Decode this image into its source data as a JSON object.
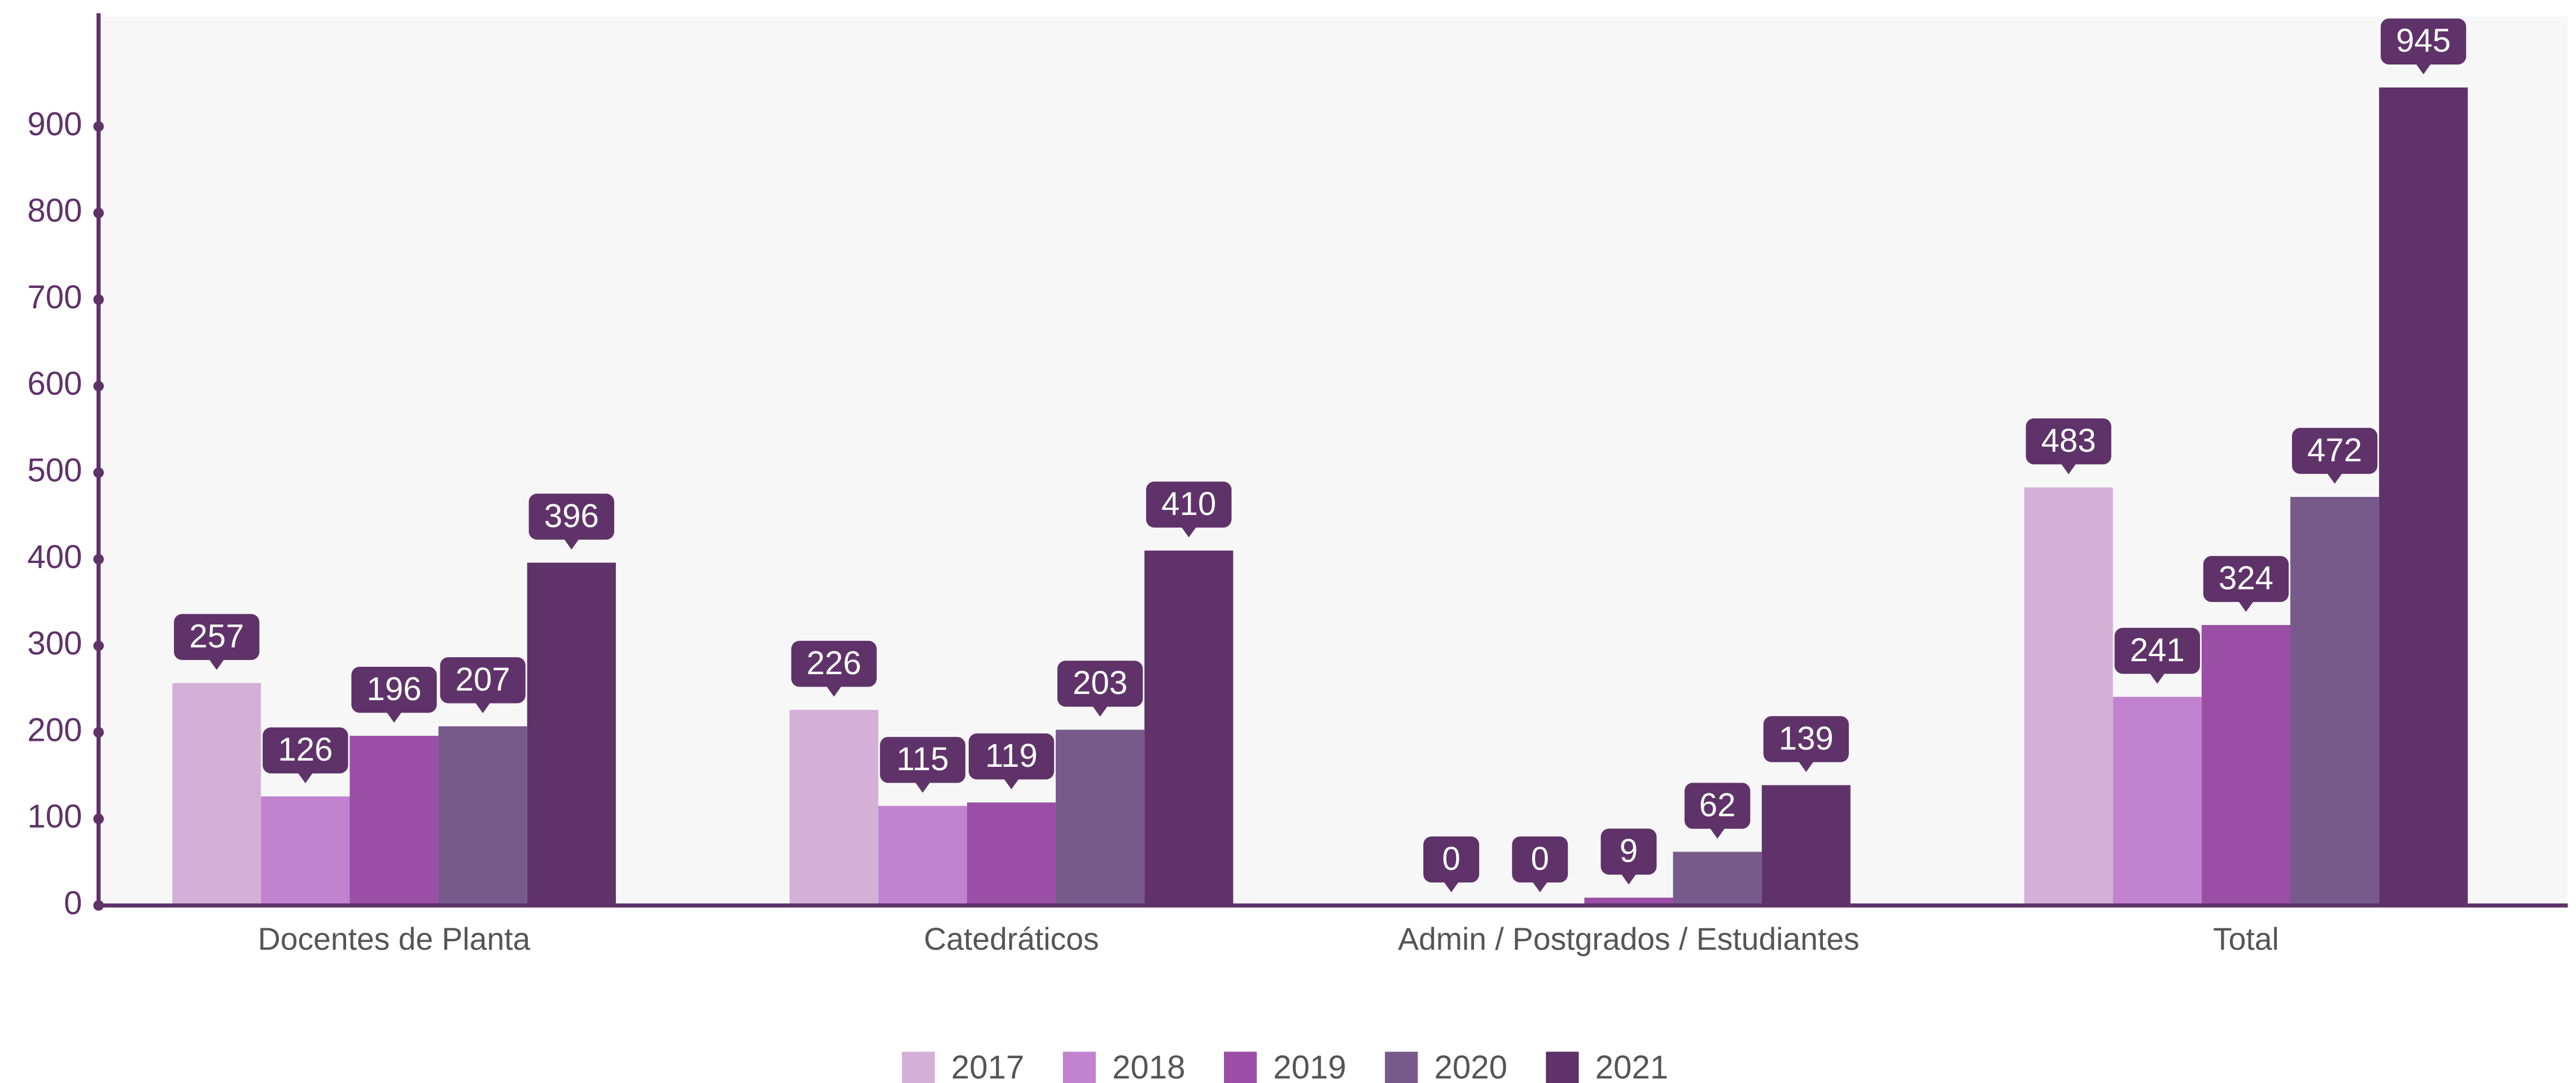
{
  "chart_data": {
    "type": "bar",
    "categories": [
      "Docentes de Planta",
      "Catedráticos",
      "Admin / Postgrados / Estudiantes",
      "Total"
    ],
    "series": [
      {
        "name": "2017",
        "color": "#d4b0d8",
        "values": [
          257,
          226,
          0,
          483
        ]
      },
      {
        "name": "2018",
        "color": "#c183cf",
        "values": [
          126,
          115,
          0,
          241
        ]
      },
      {
        "name": "2019",
        "color": "#9b4ea6",
        "values": [
          196,
          119,
          9,
          324
        ]
      },
      {
        "name": "2020",
        "color": "#775a8a",
        "values": [
          207,
          203,
          62,
          472
        ]
      },
      {
        "name": "2021",
        "color": "#5f3269",
        "values": [
          396,
          410,
          139,
          945
        ]
      }
    ],
    "ylim": [
      0,
      1027
    ],
    "yticks": [
      0,
      100,
      200,
      300,
      400,
      500,
      600,
      700,
      800,
      900
    ],
    "legend": "bottom"
  }
}
